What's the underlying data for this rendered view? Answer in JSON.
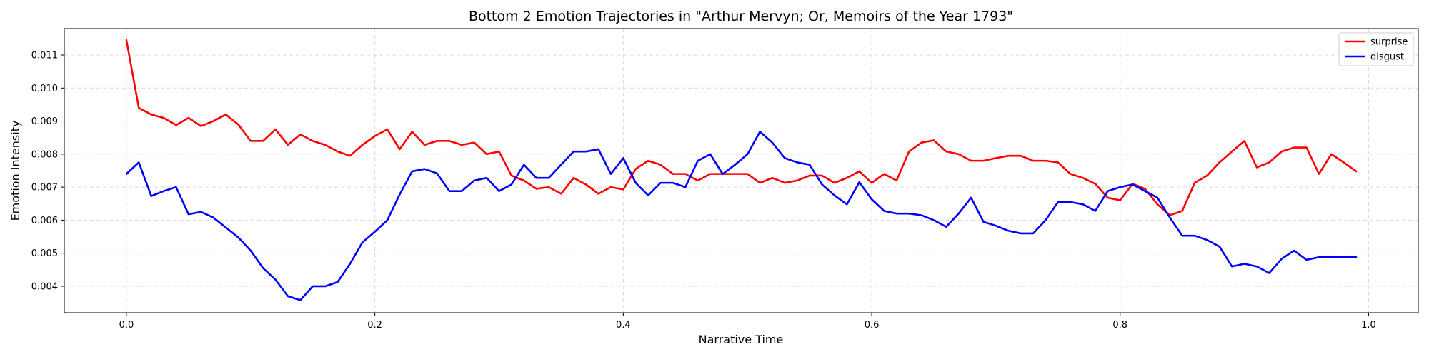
{
  "chart_data": {
    "type": "line",
    "title": "Bottom 2 Emotion Trajectories in \"Arthur Mervyn; Or, Memoirs of the Year 1793\"",
    "xlabel": "Narrative Time",
    "ylabel": "Emotion Intensity",
    "xlim": [
      -0.05,
      1.04
    ],
    "ylim": [
      0.0032,
      0.0118
    ],
    "xticks": [
      0.0,
      0.2,
      0.4,
      0.6,
      0.8,
      1.0
    ],
    "xtick_labels": [
      "0.0",
      "0.2",
      "0.4",
      "0.6",
      "0.8",
      "1.0"
    ],
    "yticks": [
      0.004,
      0.005,
      0.006,
      0.007,
      0.008,
      0.009,
      0.01,
      0.011
    ],
    "ytick_labels": [
      "0.004",
      "0.005",
      "0.006",
      "0.007",
      "0.008",
      "0.009",
      "0.010",
      "0.011"
    ],
    "grid": true,
    "legend_position": "top-right",
    "x": [
      0.0,
      0.01,
      0.02,
      0.03,
      0.04,
      0.05,
      0.06,
      0.07,
      0.08,
      0.09,
      0.1,
      0.11,
      0.12,
      0.13,
      0.14,
      0.15,
      0.16,
      0.17,
      0.18,
      0.19,
      0.2,
      0.21,
      0.22,
      0.23,
      0.24,
      0.25,
      0.26,
      0.27,
      0.28,
      0.29,
      0.3,
      0.31,
      0.32,
      0.33,
      0.34,
      0.35,
      0.36,
      0.37,
      0.38,
      0.39,
      0.4,
      0.41,
      0.42,
      0.43,
      0.44,
      0.45,
      0.46,
      0.47,
      0.48,
      0.49,
      0.5,
      0.51,
      0.52,
      0.53,
      0.54,
      0.55,
      0.56,
      0.57,
      0.58,
      0.59,
      0.6,
      0.61,
      0.62,
      0.63,
      0.64,
      0.65,
      0.66,
      0.67,
      0.68,
      0.69,
      0.7,
      0.71,
      0.72,
      0.73,
      0.74,
      0.75,
      0.76,
      0.77,
      0.78,
      0.79,
      0.8,
      0.81,
      0.82,
      0.83,
      0.84,
      0.85,
      0.86,
      0.87,
      0.88,
      0.89,
      0.9,
      0.91,
      0.92,
      0.93,
      0.94,
      0.95,
      0.96,
      0.97,
      0.98,
      0.99
    ],
    "series": [
      {
        "name": "surprise",
        "color": "#ff0000",
        "values": [
          0.01145,
          0.0094,
          0.0092,
          0.0091,
          0.00888,
          0.0091,
          0.00885,
          0.009,
          0.0092,
          0.0089,
          0.0084,
          0.0084,
          0.00875,
          0.00828,
          0.0086,
          0.0084,
          0.00828,
          0.00808,
          0.00795,
          0.00828,
          0.00855,
          0.00875,
          0.00815,
          0.00868,
          0.00828,
          0.0084,
          0.0084,
          0.00828,
          0.00835,
          0.008,
          0.00808,
          0.00735,
          0.0072,
          0.00695,
          0.007,
          0.0068,
          0.00728,
          0.00708,
          0.0068,
          0.007,
          0.00693,
          0.00755,
          0.0078,
          0.00768,
          0.0074,
          0.0074,
          0.0072,
          0.0074,
          0.0074,
          0.0074,
          0.0074,
          0.00713,
          0.00728,
          0.00713,
          0.0072,
          0.00735,
          0.00735,
          0.00713,
          0.00728,
          0.00748,
          0.00713,
          0.0074,
          0.0072,
          0.00808,
          0.00835,
          0.00842,
          0.00808,
          0.008,
          0.0078,
          0.0078,
          0.00788,
          0.00795,
          0.00795,
          0.0078,
          0.0078,
          0.00775,
          0.0074,
          0.00728,
          0.0071,
          0.00668,
          0.0066,
          0.0071,
          0.00695,
          0.00648,
          0.00615,
          0.00628,
          0.00713,
          0.00735,
          0.00775,
          0.00808,
          0.0084,
          0.0076,
          0.00775,
          0.00808,
          0.0082,
          0.0082,
          0.0074,
          0.008,
          0.00775,
          0.00748
        ]
      },
      {
        "name": "disgust",
        "color": "#0000ff",
        "values": [
          0.0074,
          0.00775,
          0.00673,
          0.00688,
          0.007,
          0.00618,
          0.00625,
          0.00608,
          0.00578,
          0.00548,
          0.00508,
          0.00455,
          0.0042,
          0.0037,
          0.00358,
          0.004,
          0.004,
          0.00413,
          0.00468,
          0.00533,
          0.00565,
          0.006,
          0.00678,
          0.00748,
          0.00755,
          0.00742,
          0.00688,
          0.00688,
          0.0072,
          0.00728,
          0.00688,
          0.00708,
          0.00768,
          0.00728,
          0.00728,
          0.00768,
          0.00808,
          0.00808,
          0.00815,
          0.0074,
          0.00788,
          0.00713,
          0.00675,
          0.00713,
          0.00713,
          0.007,
          0.0078,
          0.008,
          0.0074,
          0.00768,
          0.008,
          0.00868,
          0.00835,
          0.00788,
          0.00775,
          0.00768,
          0.00708,
          0.00675,
          0.00648,
          0.00715,
          0.00663,
          0.00628,
          0.0062,
          0.0062,
          0.00615,
          0.006,
          0.0058,
          0.0062,
          0.00668,
          0.00595,
          0.00583,
          0.00568,
          0.0056,
          0.0056,
          0.006,
          0.00655,
          0.00655,
          0.00648,
          0.00628,
          0.00688,
          0.007,
          0.00708,
          0.00688,
          0.00668,
          0.00608,
          0.00553,
          0.00553,
          0.0054,
          0.0052,
          0.0046,
          0.00468,
          0.0046,
          0.0044,
          0.00483,
          0.00508,
          0.0048,
          0.00488,
          0.00488,
          0.00488,
          0.00488
        ]
      }
    ]
  }
}
